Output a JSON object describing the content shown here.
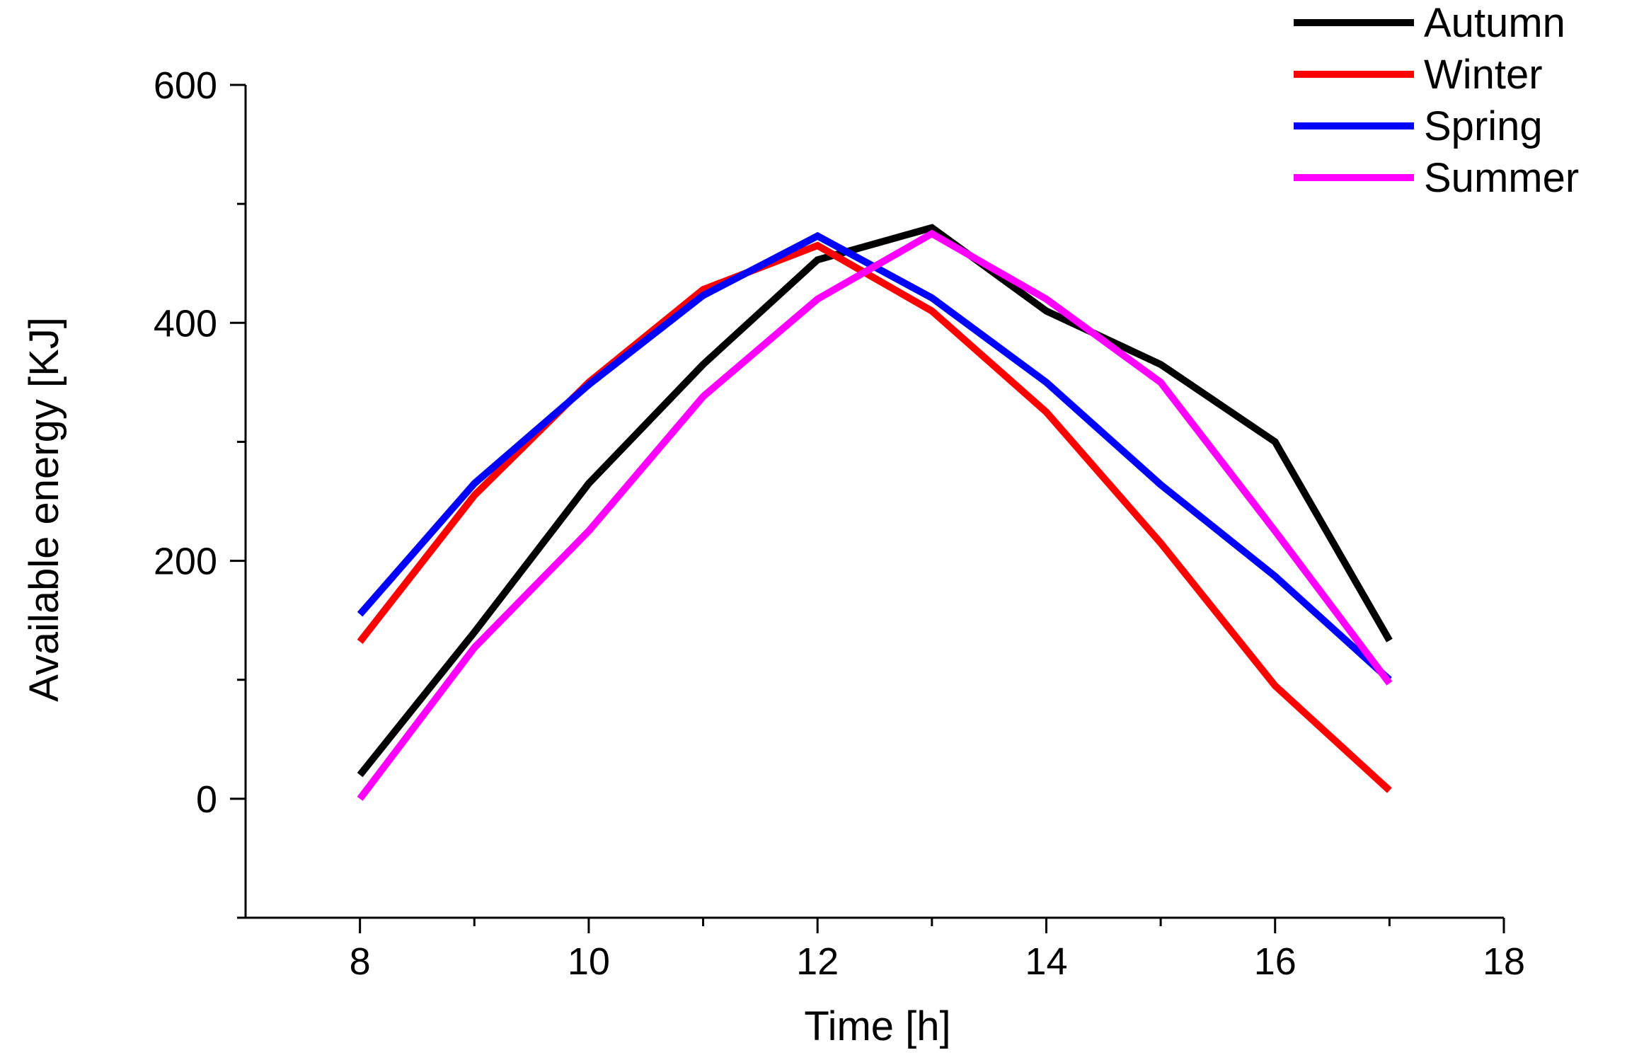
{
  "chart_data": {
    "type": "line",
    "title": "",
    "xlabel": "Time [h]",
    "ylabel": "Available energy [KJ]",
    "xlim": [
      7,
      18
    ],
    "ylim": [
      -100,
      600
    ],
    "x_ticks": [
      8,
      10,
      12,
      14,
      16,
      18
    ],
    "y_ticks": [
      0,
      200,
      400,
      600
    ],
    "x_minor_ticks": [
      9,
      11,
      13,
      15,
      17
    ],
    "y_minor_ticks": [
      100,
      300,
      500,
      -100
    ],
    "x": [
      8,
      9,
      10,
      11,
      12,
      13,
      14,
      15,
      16,
      17
    ],
    "legend_position": "top-right",
    "series": [
      {
        "name": "Autumn",
        "color": "#000000",
        "values": [
          20,
          140,
          265,
          365,
          453,
          480,
          410,
          365,
          300,
          133
        ]
      },
      {
        "name": "Winter",
        "color": "#ff0000",
        "values": [
          132,
          255,
          350,
          428,
          465,
          410,
          325,
          215,
          95,
          7
        ]
      },
      {
        "name": "Spring",
        "color": "#0000ff",
        "values": [
          155,
          265,
          348,
          423,
          473,
          421,
          350,
          264,
          187,
          100
        ]
      },
      {
        "name": "Summer",
        "color": "#ff00ff",
        "values": [
          0,
          127,
          225,
          338,
          420,
          475,
          420,
          350,
          225,
          97
        ]
      }
    ]
  }
}
